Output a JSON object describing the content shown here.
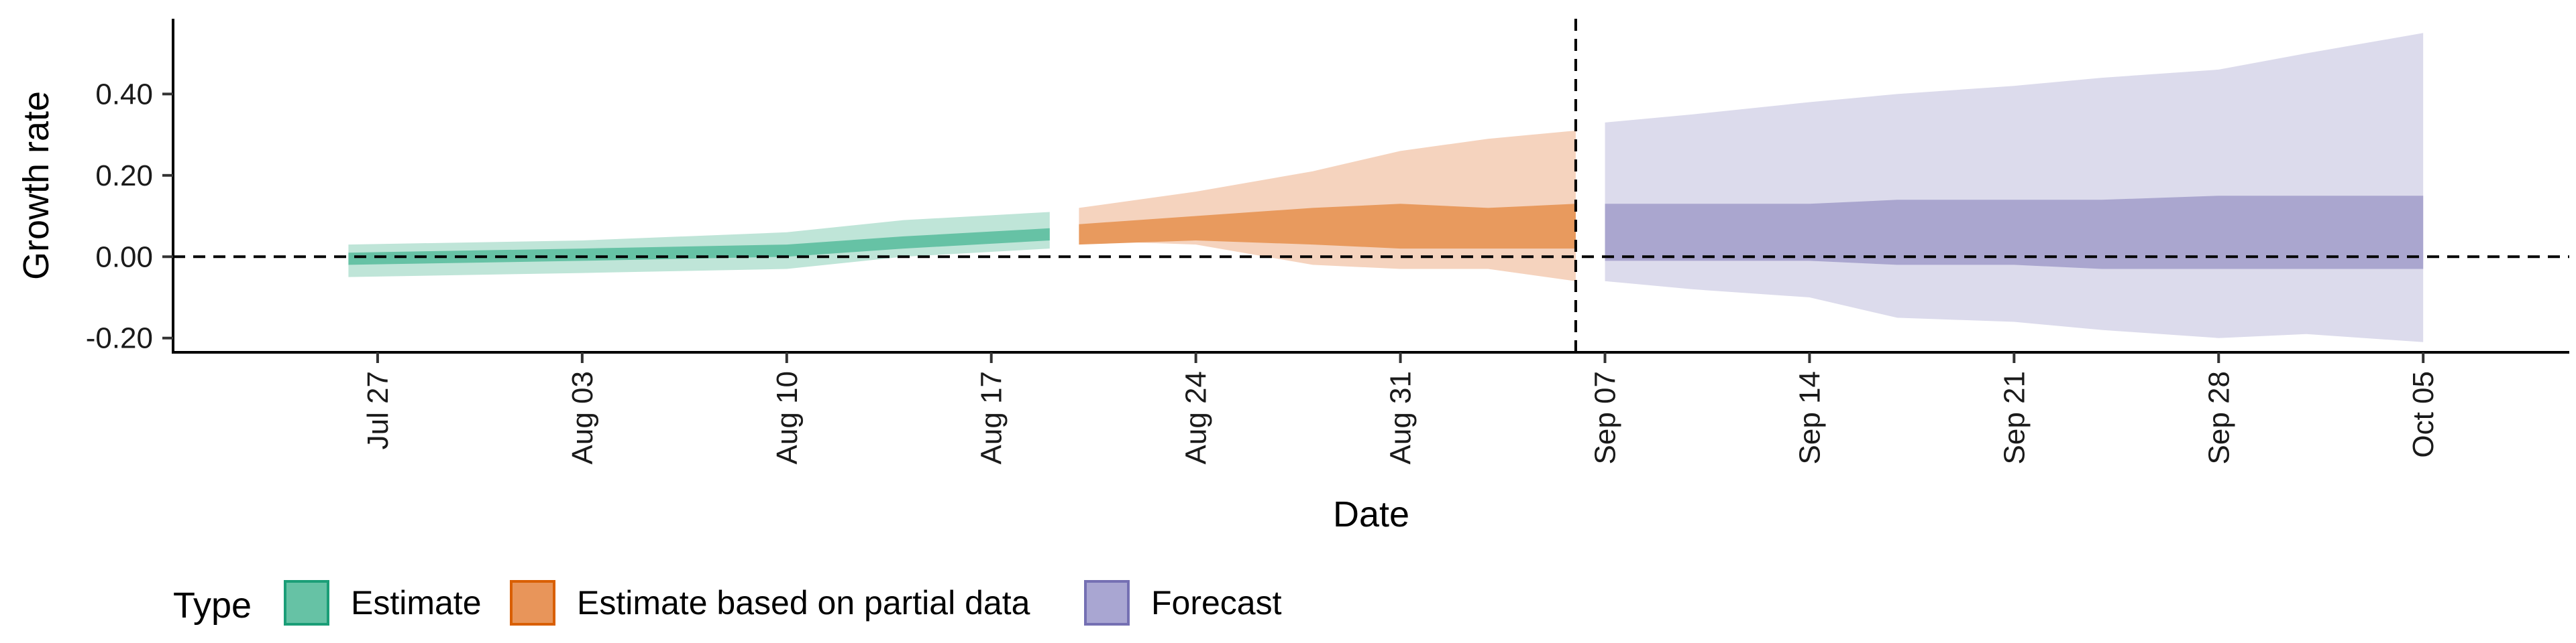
{
  "chart_data": {
    "type": "area",
    "xlabel": "Date",
    "ylabel": "Growth rate",
    "ylim": [
      -0.235,
      0.585
    ],
    "xlim": [
      "2020-07-20",
      "2020-10-10"
    ],
    "y_ticks": [
      -0.2,
      0.0,
      0.2,
      0.4
    ],
    "y_tick_labels": [
      "-0.20",
      "0.00",
      "0.20",
      "0.40"
    ],
    "x_ticks": [
      "2020-07-27",
      "2020-08-03",
      "2020-08-10",
      "2020-08-17",
      "2020-08-24",
      "2020-08-31",
      "2020-09-07",
      "2020-09-14",
      "2020-09-21",
      "2020-09-28",
      "2020-10-05"
    ],
    "x_tick_labels": [
      "Jul 27",
      "Aug 03",
      "Aug 10",
      "Aug 17",
      "Aug 24",
      "Aug 31",
      "Sep 07",
      "Sep 14",
      "Sep 21",
      "Sep 28",
      "Oct 05"
    ],
    "reference_lines": {
      "horizontal_y": 0.0,
      "vertical_x": "2020-09-06"
    },
    "legend": {
      "title": "Type",
      "position": "bottom",
      "items": [
        {
          "label": "Estimate",
          "fill": "#66c2a5",
          "stroke": "#1b9e77"
        },
        {
          "label": "Estimate based on partial data",
          "fill": "#e8955a",
          "stroke": "#d95f02"
        },
        {
          "label": "Forecast",
          "fill": "#a9a6d2",
          "stroke": "#7570b3"
        }
      ]
    },
    "series": [
      {
        "name": "Estimate",
        "inner_fill": "#66c2a5",
        "outer_fill": "#bfe5d8",
        "x": [
          "2020-07-26",
          "2020-08-03",
          "2020-08-10",
          "2020-08-14",
          "2020-08-19"
        ],
        "outer_lower": [
          -0.05,
          -0.04,
          -0.03,
          0.0,
          0.02
        ],
        "outer_upper": [
          0.03,
          0.04,
          0.06,
          0.09,
          0.11
        ],
        "inner_lower": [
          -0.02,
          -0.01,
          0.0,
          0.02,
          0.04
        ],
        "inner_upper": [
          0.01,
          0.02,
          0.03,
          0.05,
          0.07
        ]
      },
      {
        "name": "Estimate based on partial data",
        "inner_fill": "#e89a5e",
        "outer_fill": "#f5d3be",
        "x": [
          "2020-08-20",
          "2020-08-24",
          "2020-08-28",
          "2020-08-31",
          "2020-09-03",
          "2020-09-06"
        ],
        "outer_lower": [
          0.04,
          0.03,
          -0.02,
          -0.03,
          -0.03,
          -0.06
        ],
        "outer_upper": [
          0.12,
          0.16,
          0.21,
          0.26,
          0.29,
          0.31
        ],
        "inner_lower": [
          0.03,
          0.04,
          0.03,
          0.02,
          0.02,
          0.02
        ],
        "inner_upper": [
          0.08,
          0.1,
          0.12,
          0.13,
          0.12,
          0.13
        ]
      },
      {
        "name": "Forecast",
        "inner_fill": "#aaa6cf",
        "outer_fill": "#dcdbec",
        "x": [
          "2020-09-07",
          "2020-09-10",
          "2020-09-14",
          "2020-09-17",
          "2020-09-21",
          "2020-09-24",
          "2020-09-28",
          "2020-10-01",
          "2020-10-05"
        ],
        "outer_lower": [
          -0.06,
          -0.08,
          -0.1,
          -0.15,
          -0.16,
          -0.18,
          -0.2,
          -0.19,
          -0.21
        ],
        "outer_upper": [
          0.33,
          0.35,
          0.38,
          0.4,
          0.42,
          0.44,
          0.46,
          0.5,
          0.55
        ],
        "inner_lower": [
          -0.01,
          -0.01,
          -0.01,
          -0.02,
          -0.02,
          -0.03,
          -0.03,
          -0.03,
          -0.03
        ],
        "inner_upper": [
          0.13,
          0.13,
          0.13,
          0.14,
          0.14,
          0.14,
          0.15,
          0.15,
          0.15
        ]
      }
    ]
  }
}
